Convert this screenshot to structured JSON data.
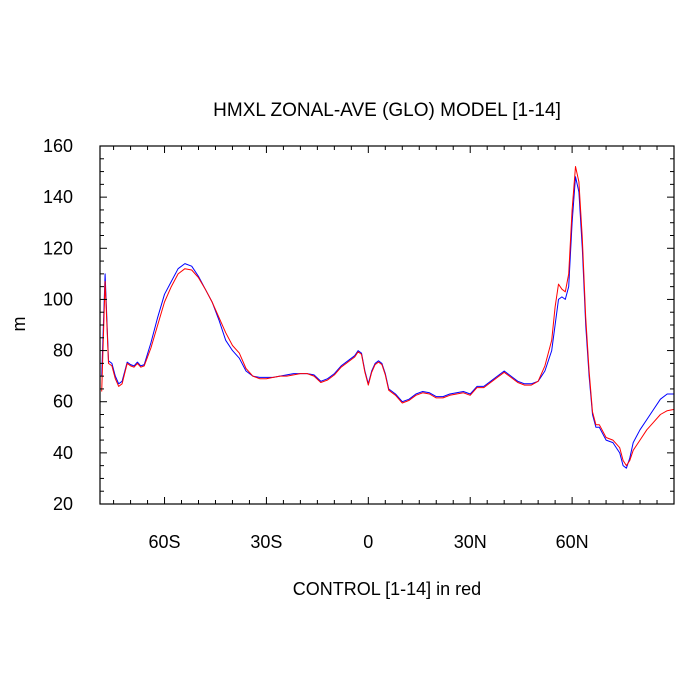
{
  "chart_data": {
    "type": "line",
    "title": "HMXL ZONAL-AVE (GLO) MODEL [1-14]",
    "xlabel": "CONTROL [1-14] in red",
    "ylabel": "m",
    "xlim": [
      -79,
      90
    ],
    "ylim": [
      20,
      160
    ],
    "x_ticks": [
      {
        "value": -60,
        "label": "60S"
      },
      {
        "value": -30,
        "label": "30S"
      },
      {
        "value": 0,
        "label": "0"
      },
      {
        "value": 30,
        "label": "30N"
      },
      {
        "value": 60,
        "label": "60N"
      }
    ],
    "y_ticks": [
      20,
      40,
      60,
      80,
      100,
      120,
      140,
      160
    ],
    "grid": false,
    "series": [
      {
        "color": "#0000ff",
        "points": [
          [
            -78.5,
            70
          ],
          [
            -77.5,
            110
          ],
          [
            -76.5,
            76
          ],
          [
            -75.5,
            75
          ],
          [
            -74.5,
            70
          ],
          [
            -73.5,
            67
          ],
          [
            -72.5,
            68
          ],
          [
            -71,
            75.5
          ],
          [
            -70,
            74.5
          ],
          [
            -69,
            74
          ],
          [
            -68,
            75.5
          ],
          [
            -67,
            74
          ],
          [
            -66,
            74.5
          ],
          [
            -64,
            83
          ],
          [
            -62,
            93
          ],
          [
            -60,
            102
          ],
          [
            -58,
            107
          ],
          [
            -56,
            112
          ],
          [
            -54,
            114
          ],
          [
            -52,
            113
          ],
          [
            -50,
            109
          ],
          [
            -48,
            104
          ],
          [
            -46,
            99
          ],
          [
            -44,
            92
          ],
          [
            -42,
            84
          ],
          [
            -40,
            80
          ],
          [
            -38,
            77
          ],
          [
            -36,
            72
          ],
          [
            -34,
            70
          ],
          [
            -32,
            69.5
          ],
          [
            -30,
            69.5
          ],
          [
            -28,
            69.5
          ],
          [
            -26,
            70
          ],
          [
            -24,
            70.5
          ],
          [
            -22,
            71
          ],
          [
            -20,
            71
          ],
          [
            -18,
            71
          ],
          [
            -16,
            70.5
          ],
          [
            -14,
            68
          ],
          [
            -12,
            69
          ],
          [
            -10,
            71
          ],
          [
            -8,
            74
          ],
          [
            -6,
            76
          ],
          [
            -4,
            78
          ],
          [
            -3,
            80
          ],
          [
            -2,
            79
          ],
          [
            -1,
            72
          ],
          [
            0,
            67
          ],
          [
            1,
            72
          ],
          [
            2,
            75
          ],
          [
            3,
            76
          ],
          [
            4,
            75
          ],
          [
            5,
            71
          ],
          [
            6,
            65
          ],
          [
            8,
            63
          ],
          [
            10,
            60
          ],
          [
            12,
            61
          ],
          [
            14,
            63
          ],
          [
            16,
            64
          ],
          [
            18,
            63.5
          ],
          [
            20,
            62
          ],
          [
            22,
            62
          ],
          [
            24,
            63
          ],
          [
            26,
            63.5
          ],
          [
            28,
            64
          ],
          [
            30,
            63
          ],
          [
            32,
            66
          ],
          [
            34,
            66
          ],
          [
            36,
            68
          ],
          [
            38,
            70
          ],
          [
            40,
            72
          ],
          [
            42,
            70
          ],
          [
            44,
            68
          ],
          [
            46,
            67
          ],
          [
            48,
            67
          ],
          [
            50,
            68
          ],
          [
            52,
            72
          ],
          [
            54,
            80
          ],
          [
            55,
            90
          ],
          [
            56,
            100
          ],
          [
            57,
            101
          ],
          [
            58,
            100
          ],
          [
            59,
            105
          ],
          [
            60,
            130
          ],
          [
            61,
            148
          ],
          [
            62,
            142
          ],
          [
            63,
            120
          ],
          [
            64,
            90
          ],
          [
            65,
            70
          ],
          [
            66,
            55
          ],
          [
            67,
            50
          ],
          [
            68,
            50
          ],
          [
            70,
            45
          ],
          [
            72,
            44
          ],
          [
            74,
            40
          ],
          [
            75,
            35
          ],
          [
            76,
            34
          ],
          [
            77,
            38
          ],
          [
            78,
            44
          ],
          [
            80,
            49
          ],
          [
            82,
            53
          ],
          [
            84,
            57
          ],
          [
            86,
            61
          ],
          [
            88,
            63
          ],
          [
            90,
            63
          ]
        ]
      },
      {
        "color": "#ff0000",
        "points": [
          [
            -78.5,
            64
          ],
          [
            -77.5,
            107
          ],
          [
            -76.5,
            75
          ],
          [
            -75.5,
            74
          ],
          [
            -74.5,
            69
          ],
          [
            -73.5,
            66
          ],
          [
            -72.5,
            67
          ],
          [
            -71,
            75
          ],
          [
            -70,
            74
          ],
          [
            -69,
            73.5
          ],
          [
            -68,
            75
          ],
          [
            -67,
            73.5
          ],
          [
            -66,
            74
          ],
          [
            -64,
            81
          ],
          [
            -62,
            90
          ],
          [
            -60,
            99
          ],
          [
            -58,
            105
          ],
          [
            -56,
            110
          ],
          [
            -54,
            112
          ],
          [
            -52,
            111.5
          ],
          [
            -50,
            108.5
          ],
          [
            -48,
            104
          ],
          [
            -46,
            99
          ],
          [
            -44,
            93
          ],
          [
            -42,
            87
          ],
          [
            -40,
            82
          ],
          [
            -38,
            79
          ],
          [
            -36,
            73
          ],
          [
            -34,
            70
          ],
          [
            -32,
            69
          ],
          [
            -30,
            69
          ],
          [
            -28,
            69.5
          ],
          [
            -26,
            70
          ],
          [
            -24,
            70
          ],
          [
            -22,
            70.5
          ],
          [
            -20,
            71
          ],
          [
            -18,
            71
          ],
          [
            -16,
            70
          ],
          [
            -14,
            67.5
          ],
          [
            -12,
            68.5
          ],
          [
            -10,
            70.5
          ],
          [
            -8,
            73.5
          ],
          [
            -6,
            75.5
          ],
          [
            -4,
            77.5
          ],
          [
            -3,
            79.5
          ],
          [
            -2,
            78.5
          ],
          [
            -1,
            71.5
          ],
          [
            0,
            66.5
          ],
          [
            1,
            71.5
          ],
          [
            2,
            74.5
          ],
          [
            3,
            75.5
          ],
          [
            4,
            74.5
          ],
          [
            5,
            70.5
          ],
          [
            6,
            64.5
          ],
          [
            8,
            62.5
          ],
          [
            10,
            59.5
          ],
          [
            12,
            60.5
          ],
          [
            14,
            62.5
          ],
          [
            16,
            63.5
          ],
          [
            18,
            63
          ],
          [
            20,
            61.5
          ],
          [
            22,
            61.5
          ],
          [
            24,
            62.5
          ],
          [
            26,
            63
          ],
          [
            28,
            63.5
          ],
          [
            30,
            62.5
          ],
          [
            32,
            65.5
          ],
          [
            34,
            65.5
          ],
          [
            36,
            67.5
          ],
          [
            38,
            69.5
          ],
          [
            40,
            71.5
          ],
          [
            42,
            69.5
          ],
          [
            44,
            67.5
          ],
          [
            46,
            66.5
          ],
          [
            48,
            66.5
          ],
          [
            50,
            68
          ],
          [
            52,
            74
          ],
          [
            54,
            84
          ],
          [
            55,
            97
          ],
          [
            56,
            106
          ],
          [
            57,
            104
          ],
          [
            58,
            103
          ],
          [
            59,
            110
          ],
          [
            60,
            135
          ],
          [
            61,
            152
          ],
          [
            62,
            146
          ],
          [
            63,
            124
          ],
          [
            64,
            93
          ],
          [
            65,
            72
          ],
          [
            66,
            56
          ],
          [
            67,
            51
          ],
          [
            68,
            51
          ],
          [
            70,
            46
          ],
          [
            72,
            45
          ],
          [
            74,
            42
          ],
          [
            75,
            37
          ],
          [
            76,
            35
          ],
          [
            77,
            37
          ],
          [
            78,
            41
          ],
          [
            80,
            45
          ],
          [
            82,
            49
          ],
          [
            84,
            52
          ],
          [
            86,
            55
          ],
          [
            88,
            56.5
          ],
          [
            90,
            57
          ]
        ]
      }
    ]
  }
}
